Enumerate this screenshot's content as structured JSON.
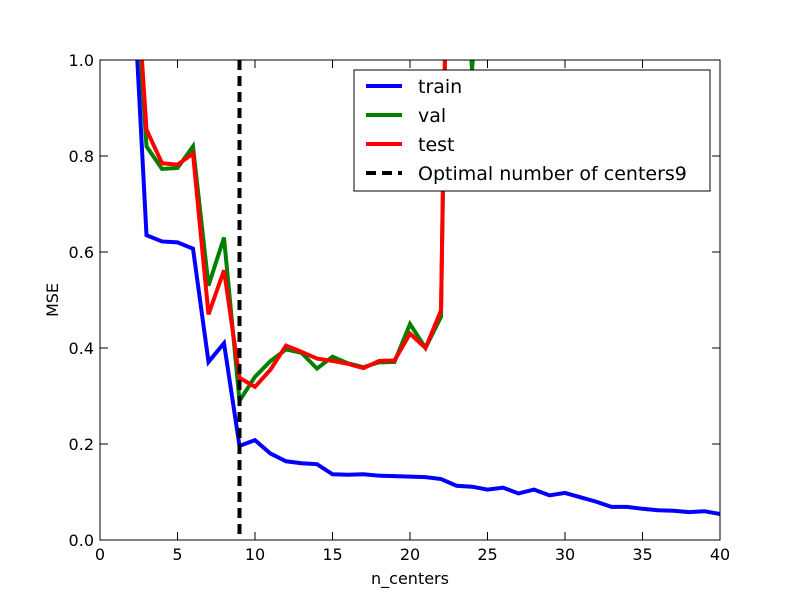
{
  "chart_data": {
    "type": "line",
    "title": "",
    "xlabel": "n_centers",
    "ylabel": "MSE",
    "xlim": [
      0,
      40
    ],
    "ylim": [
      0,
      1.0
    ],
    "xticks": [
      0,
      5,
      10,
      15,
      20,
      25,
      30,
      35,
      40
    ],
    "yticks": [
      0.0,
      0.2,
      0.4,
      0.6,
      0.8,
      1.0
    ],
    "xtick_labels": [
      "0",
      "5",
      "10",
      "15",
      "20",
      "25",
      "30",
      "35",
      "40"
    ],
    "ytick_labels": [
      "0.0",
      "0.2",
      "0.4",
      "0.6",
      "0.8",
      "1.0"
    ],
    "grid": false,
    "legend_position": "top-right",
    "series": [
      {
        "name": "train",
        "color": "#0000ff",
        "x": [
          2,
          3,
          4,
          5,
          6,
          7,
          8,
          9,
          10,
          11,
          12,
          13,
          14,
          15,
          16,
          17,
          18,
          19,
          20,
          21,
          22,
          23,
          24,
          25,
          26,
          27,
          28,
          29,
          30,
          31,
          32,
          33,
          34,
          35,
          36,
          37,
          38,
          39,
          40
        ],
        "values": [
          1.25,
          0.635,
          0.622,
          0.62,
          0.607,
          0.371,
          0.41,
          0.196,
          0.208,
          0.18,
          0.164,
          0.16,
          0.158,
          0.137,
          0.136,
          0.137,
          0.134,
          0.133,
          0.132,
          0.131,
          0.127,
          0.113,
          0.111,
          0.105,
          0.109,
          0.097,
          0.105,
          0.093,
          0.098,
          0.089,
          0.08,
          0.069,
          0.069,
          0.065,
          0.062,
          0.061,
          0.058,
          0.06,
          0.054
        ]
      },
      {
        "name": "val",
        "color": "#008000",
        "x": [
          2,
          3,
          4,
          5,
          6,
          7,
          8,
          9,
          10,
          11,
          12,
          13,
          14,
          15,
          16,
          17,
          18,
          19,
          20,
          21,
          22,
          22.3,
          23,
          23.7,
          24,
          24.3
        ],
        "values": [
          1.3,
          0.82,
          0.773,
          0.775,
          0.82,
          0.53,
          0.63,
          0.29,
          0.34,
          0.373,
          0.397,
          0.39,
          0.357,
          0.382,
          0.368,
          0.36,
          0.37,
          0.371,
          0.45,
          0.4,
          0.465,
          1.1,
          1.25,
          1.15,
          0.98,
          1.1
        ]
      },
      {
        "name": "test",
        "color": "#ff0000",
        "x": [
          2,
          3,
          4,
          5,
          6,
          7,
          8,
          9,
          10,
          11,
          12,
          13,
          14,
          15,
          16,
          17,
          18,
          19,
          20,
          21,
          22,
          22.3,
          23
        ],
        "values": [
          1.35,
          0.855,
          0.785,
          0.782,
          0.805,
          0.47,
          0.562,
          0.338,
          0.319,
          0.355,
          0.405,
          0.392,
          0.378,
          0.373,
          0.367,
          0.358,
          0.373,
          0.374,
          0.43,
          0.4,
          0.478,
          1.1,
          1.2
        ]
      }
    ],
    "vlines": [
      {
        "name": "Optimal number of centers9",
        "x": 9,
        "color": "#000000",
        "style": "dashed"
      }
    ]
  }
}
